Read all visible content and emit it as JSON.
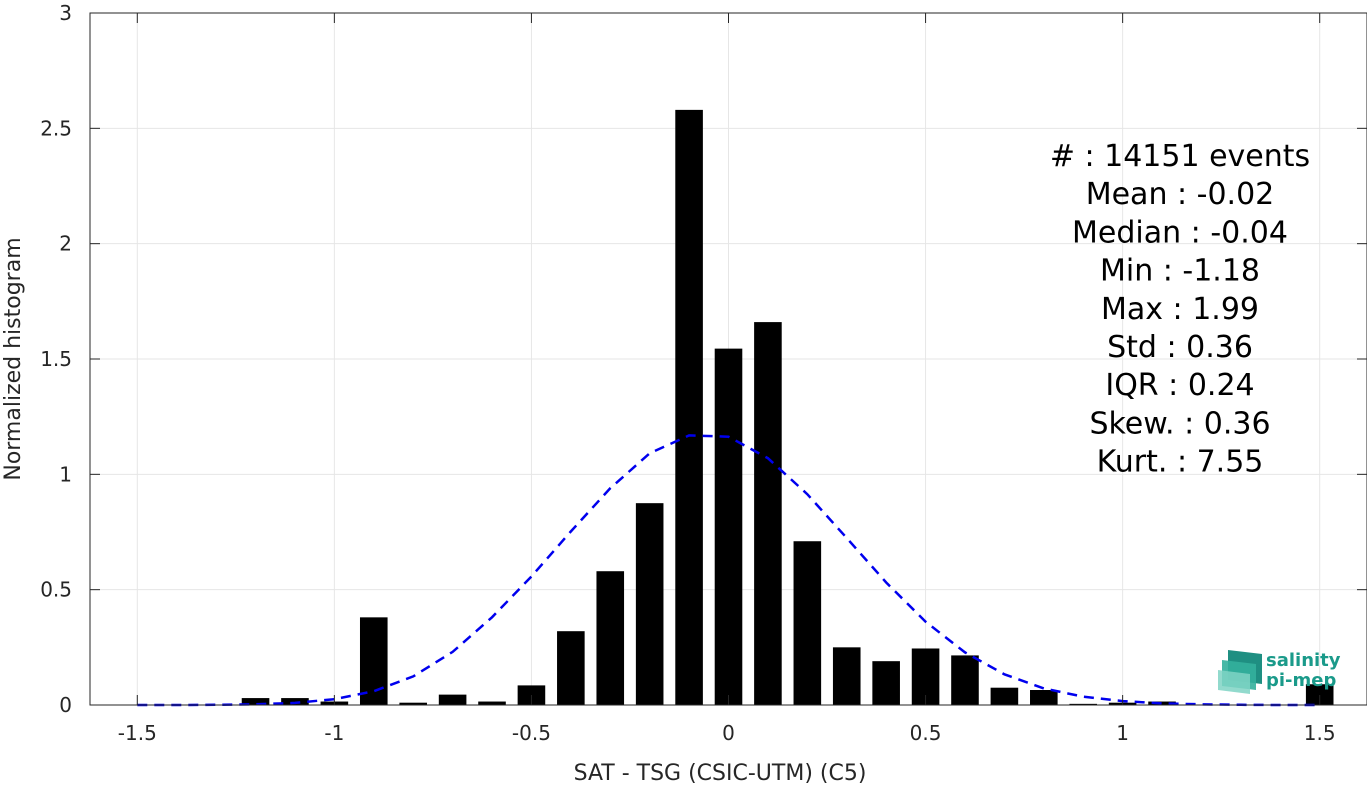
{
  "chart_data": {
    "type": "bar",
    "xlabel": "SAT - TSG (CSIC-UTM) (C5)",
    "ylabel": "Normalized histogram",
    "xlim": [
      -1.62,
      1.62
    ],
    "ylim": [
      0,
      3
    ],
    "xticks": [
      -1.5,
      -1,
      -0.5,
      0,
      0.5,
      1,
      1.5
    ],
    "xtick_labels": [
      "-1.5",
      "-1",
      "-0.5",
      "0",
      "0.5",
      "1",
      "1.5"
    ],
    "yticks": [
      0,
      0.5,
      1,
      1.5,
      2,
      2.5,
      3
    ],
    "ytick_labels": [
      "0",
      "0.5",
      "1",
      "1.5",
      "2",
      "2.5",
      "3"
    ],
    "grid": true,
    "bar_width": 0.07,
    "bars": {
      "x": [
        -1.2,
        -1.1,
        -1.0,
        -0.9,
        -0.8,
        -0.7,
        -0.6,
        -0.5,
        -0.4,
        -0.3,
        -0.2,
        -0.1,
        0.0,
        0.1,
        0.2,
        0.3,
        0.4,
        0.5,
        0.6,
        0.7,
        0.8,
        0.9,
        1.0,
        1.1,
        1.5
      ],
      "values": [
        0.03,
        0.03,
        0.015,
        0.38,
        0.01,
        0.045,
        0.015,
        0.085,
        0.32,
        0.58,
        0.875,
        2.58,
        1.545,
        1.66,
        0.71,
        0.25,
        0.19,
        0.245,
        0.215,
        0.075,
        0.065,
        0.005,
        0.01,
        0.015,
        0.09
      ],
      "color": "#000000"
    },
    "series": [
      {
        "type": "line",
        "style": "dashed",
        "color": "#0000ee",
        "x": [
          -1.5,
          -1.4,
          -1.3,
          -1.2,
          -1.1,
          -1.0,
          -0.9,
          -0.8,
          -0.7,
          -0.6,
          -0.5,
          -0.4,
          -0.3,
          -0.2,
          -0.1,
          0.0,
          0.1,
          0.2,
          0.3,
          0.4,
          0.5,
          0.6,
          0.7,
          0.8,
          0.9,
          1.0,
          1.1,
          1.2,
          1.3,
          1.4,
          1.5
        ],
        "values": [
          0.0,
          0.0,
          0.001,
          0.003,
          0.009,
          0.025,
          0.06,
          0.124,
          0.23,
          0.38,
          0.557,
          0.752,
          0.94,
          1.091,
          1.169,
          1.163,
          1.07,
          0.914,
          0.724,
          0.531,
          0.361,
          0.228,
          0.133,
          0.072,
          0.036,
          0.017,
          0.007,
          0.003,
          0.001,
          0.0,
          0.0
        ]
      }
    ],
    "stats_lines": [
      "#  : 14151 events",
      "Mean : -0.02",
      "Median : -0.04",
      "Min : -1.18",
      "Max : 1.99",
      "Std : 0.36",
      "IQR : 0.24",
      "Skew. : 0.36",
      "Kurt. : 7.55"
    ],
    "logo": {
      "line1": "salinity",
      "line2": "pi-mep"
    }
  },
  "colors": {
    "axis": "#262626",
    "grid": "#e6e6e6",
    "bar": "#000000",
    "fit_line": "#0000ee",
    "logo": "#1a9a8a"
  }
}
